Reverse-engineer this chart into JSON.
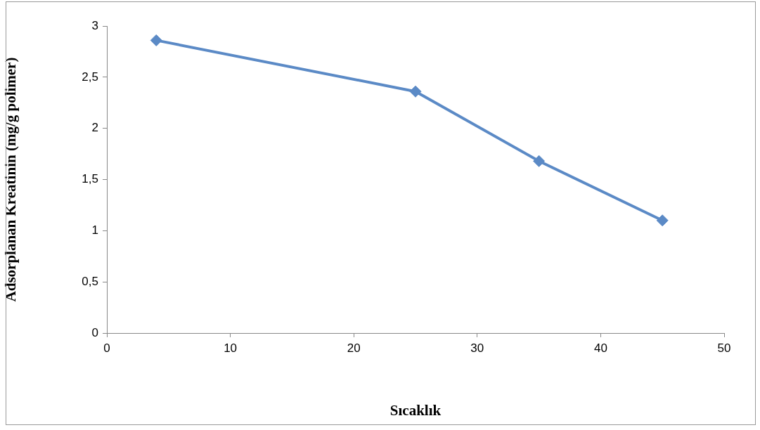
{
  "chart_data": {
    "type": "line",
    "xlabel": "Sıcaklık",
    "ylabel": "Adsorplanan Kreatinin (mg/g polimer)",
    "x": [
      4,
      25,
      35,
      45
    ],
    "series": [
      {
        "color": "#5b8ac6",
        "values": [
          2.86,
          2.36,
          1.68,
          1.1
        ]
      }
    ],
    "xlim": [
      0,
      50
    ],
    "xticks": [
      0,
      10,
      20,
      30,
      40,
      50
    ],
    "ylim": [
      0,
      3
    ],
    "yticks": [
      0,
      {
        "value": 0.5,
        "label": "0,5"
      },
      1,
      {
        "value": 1.5,
        "label": "1,5"
      },
      2,
      {
        "value": 2.5,
        "label": "2,5"
      },
      3
    ],
    "marker": "diamond",
    "line_style": "solid"
  }
}
